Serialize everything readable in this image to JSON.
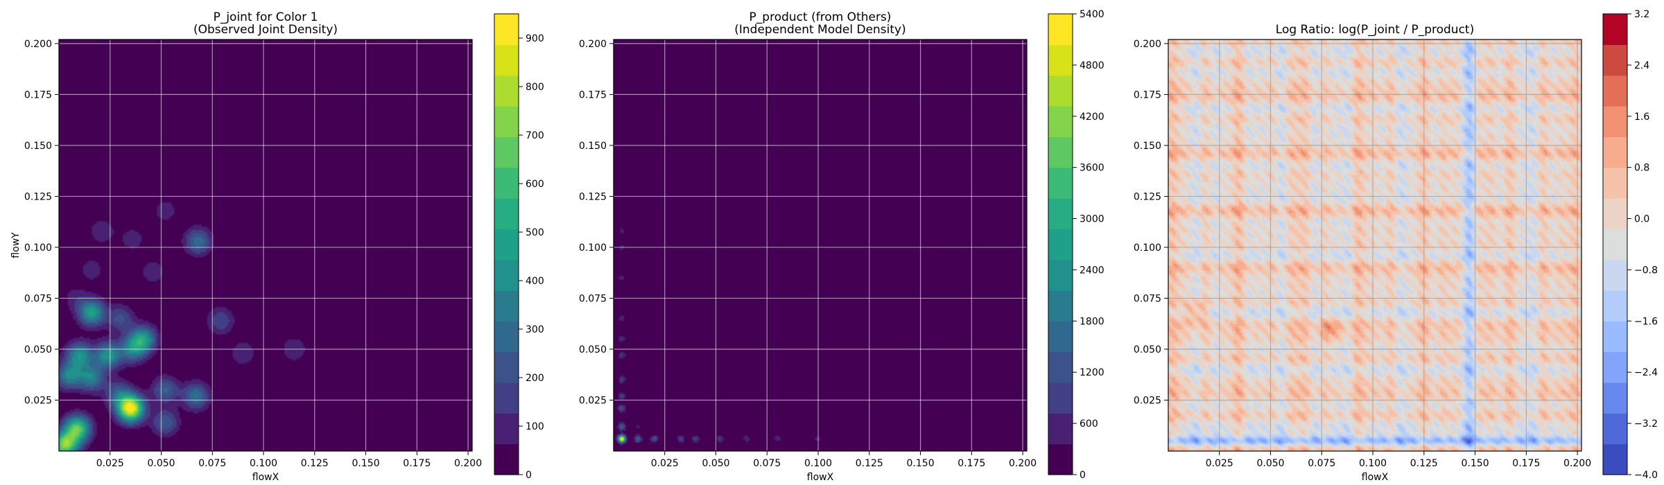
{
  "colors": {
    "viridis": [
      "#440154",
      "#482172",
      "#423f85",
      "#3b528b",
      "#31688e",
      "#287c8e",
      "#21918c",
      "#1fa088",
      "#27ad81",
      "#3bbb75",
      "#5ec962",
      "#84d44b",
      "#addc30",
      "#d8e219",
      "#fde725"
    ],
    "coolwarm": [
      "#3b4cc0",
      "#4f69d9",
      "#6788ee",
      "#82a5fb",
      "#9abbff",
      "#b3cdfb",
      "#c9d7f0",
      "#dcdddd",
      "#ebd3c6",
      "#f6c3aa",
      "#f7ac8e",
      "#f29072",
      "#e36f56",
      "#cd4a40",
      "#b40426"
    ]
  },
  "chart_data": [
    {
      "type": "heatmap",
      "title": "P_joint for Color 1\n(Observed Joint Density)",
      "xlabel": "flowX",
      "ylabel": "flowY",
      "xticks": [
        "0.025",
        "0.050",
        "0.075",
        "0.100",
        "0.125",
        "0.150",
        "0.175",
        "0.200"
      ],
      "yticks": [
        "0.025",
        "0.050",
        "0.075",
        "0.100",
        "0.125",
        "0.150",
        "0.175",
        "0.200"
      ],
      "xlim": [
        0.0,
        0.202
      ],
      "ylim": [
        0.0,
        0.202
      ],
      "colormap": "viridis",
      "colorbar": {
        "min": 0,
        "max": 950,
        "ticks": [
          "0",
          "100",
          "200",
          "300",
          "400",
          "500",
          "600",
          "700",
          "800",
          "900"
        ]
      },
      "grid": true,
      "peaks": [
        {
          "x": 0.035,
          "y": 0.021,
          "value": 950
        },
        {
          "x": 0.003,
          "y": 0.003,
          "value": 720
        },
        {
          "x": 0.009,
          "y": 0.011,
          "value": 650
        },
        {
          "x": 0.016,
          "y": 0.068,
          "value": 470
        },
        {
          "x": 0.041,
          "y": 0.055,
          "value": 450
        },
        {
          "x": 0.01,
          "y": 0.047,
          "value": 420
        },
        {
          "x": 0.024,
          "y": 0.047,
          "value": 430
        },
        {
          "x": 0.005,
          "y": 0.037,
          "value": 380
        },
        {
          "x": 0.016,
          "y": 0.036,
          "value": 360
        },
        {
          "x": 0.036,
          "y": 0.05,
          "value": 340
        },
        {
          "x": 0.067,
          "y": 0.027,
          "value": 320
        },
        {
          "x": 0.052,
          "y": 0.03,
          "value": 260
        },
        {
          "x": 0.052,
          "y": 0.014,
          "value": 250
        },
        {
          "x": 0.068,
          "y": 0.103,
          "value": 300
        },
        {
          "x": 0.03,
          "y": 0.065,
          "value": 210
        },
        {
          "x": 0.029,
          "y": 0.028,
          "value": 250
        },
        {
          "x": 0.079,
          "y": 0.064,
          "value": 190
        },
        {
          "x": 0.09,
          "y": 0.048,
          "value": 120
        },
        {
          "x": 0.021,
          "y": 0.108,
          "value": 120
        },
        {
          "x": 0.052,
          "y": 0.118,
          "value": 100
        },
        {
          "x": 0.046,
          "y": 0.088,
          "value": 110
        },
        {
          "x": 0.036,
          "y": 0.104,
          "value": 100
        },
        {
          "x": 0.115,
          "y": 0.05,
          "value": 120
        },
        {
          "x": 0.016,
          "y": 0.089,
          "value": 100
        },
        {
          "x": 0.008,
          "y": 0.075,
          "value": 90
        }
      ]
    },
    {
      "type": "heatmap",
      "title": "P_product (from Others)\n(Independent Model Density)",
      "xlabel": "flowX",
      "ylabel": "",
      "xticks": [
        "0.025",
        "0.050",
        "0.075",
        "0.100",
        "0.125",
        "0.150",
        "0.175",
        "0.200"
      ],
      "yticks": [
        "0.025",
        "0.050",
        "0.075",
        "0.100",
        "0.125",
        "0.150",
        "0.175",
        "0.200"
      ],
      "xlim": [
        0.0,
        0.202
      ],
      "ylim": [
        0.0,
        0.202
      ],
      "colormap": "viridis",
      "colorbar": {
        "min": 0,
        "max": 5400,
        "ticks": [
          "0",
          "600",
          "1200",
          "1800",
          "2400",
          "3000",
          "3600",
          "4200",
          "4800",
          "5400"
        ]
      },
      "grid": true,
      "marginal_x_peaks": [
        0.004,
        0.012,
        0.02,
        0.033,
        0.04,
        0.052,
        0.065,
        0.08,
        0.1
      ],
      "marginal_y_peaks": [
        0.006,
        0.012,
        0.021,
        0.027,
        0.035,
        0.047,
        0.055,
        0.065,
        0.085,
        0.1,
        0.108
      ],
      "peak_value": 5400
    },
    {
      "type": "heatmap",
      "title": "Log Ratio: log(P_joint / P_product)",
      "xlabel": "flowX",
      "ylabel": "",
      "xticks": [
        "0.025",
        "0.050",
        "0.075",
        "0.100",
        "0.125",
        "0.150",
        "0.175",
        "0.200"
      ],
      "yticks": [
        "0.025",
        "0.050",
        "0.075",
        "0.100",
        "0.125",
        "0.150",
        "0.175",
        "0.200"
      ],
      "xlim": [
        0.0,
        0.202
      ],
      "ylim": [
        0.0,
        0.202
      ],
      "colormap": "coolwarm",
      "colorbar": {
        "min": -4.0,
        "max": 3.2,
        "ticks": [
          "−4.0",
          "−3.2",
          "−2.4",
          "−1.6",
          "−0.8",
          "0.0",
          "0.8",
          "1.6",
          "2.4",
          "3.2"
        ]
      },
      "grid": true,
      "range": [
        -4.0,
        3.2
      ]
    }
  ]
}
